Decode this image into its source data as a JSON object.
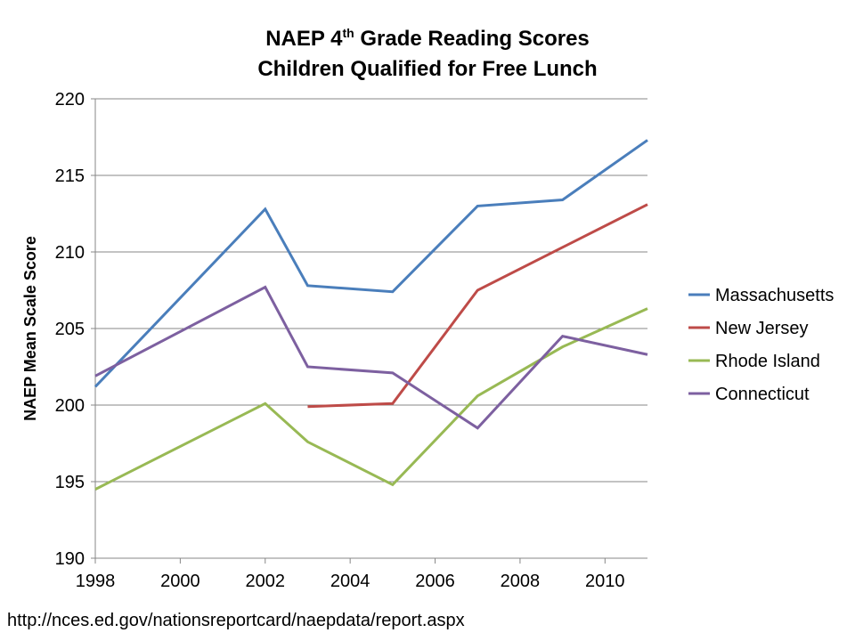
{
  "chart_data": {
    "type": "line",
    "title_line1_prefix": "NAEP 4",
    "title_line1_sup": "th",
    "title_line1_suffix": " Grade Reading Scores",
    "title_line2": "Children Qualified for Free Lunch",
    "xlabel": "",
    "ylabel": "NAEP Mean Scale Score",
    "xlim": [
      1998,
      2011
    ],
    "ylim": [
      190,
      220
    ],
    "xticks": [
      1998,
      2000,
      2002,
      2004,
      2006,
      2008,
      2010
    ],
    "yticks": [
      190,
      195,
      200,
      205,
      210,
      215,
      220
    ],
    "grid": "horizontal",
    "legend_position": "right",
    "series": [
      {
        "name": "Massachusetts",
        "color": "#4a7ebb",
        "x": [
          1998,
          2002,
          2003,
          2005,
          2007,
          2009,
          2011
        ],
        "y": [
          201.2,
          212.8,
          207.8,
          207.4,
          213.0,
          213.4,
          217.3
        ]
      },
      {
        "name": "New Jersey",
        "color": "#be4b48",
        "x": [
          2003,
          2005,
          2007,
          2009,
          2011
        ],
        "y": [
          199.9,
          200.1,
          207.5,
          210.3,
          213.1
        ]
      },
      {
        "name": "Rhode Island",
        "color": "#98b954",
        "x": [
          1998,
          2002,
          2003,
          2005,
          2007,
          2009,
          2011
        ],
        "y": [
          194.5,
          200.1,
          197.6,
          194.8,
          200.6,
          203.8,
          206.3
        ]
      },
      {
        "name": "Connecticut",
        "color": "#7d60a0",
        "x": [
          1998,
          2002,
          2003,
          2005,
          2007,
          2009,
          2011
        ],
        "y": [
          201.9,
          207.7,
          202.5,
          202.1,
          198.5,
          204.5,
          203.3
        ]
      }
    ]
  },
  "source": "http://nces.ed.gov/nationsreportcard/naepdata/report.aspx"
}
